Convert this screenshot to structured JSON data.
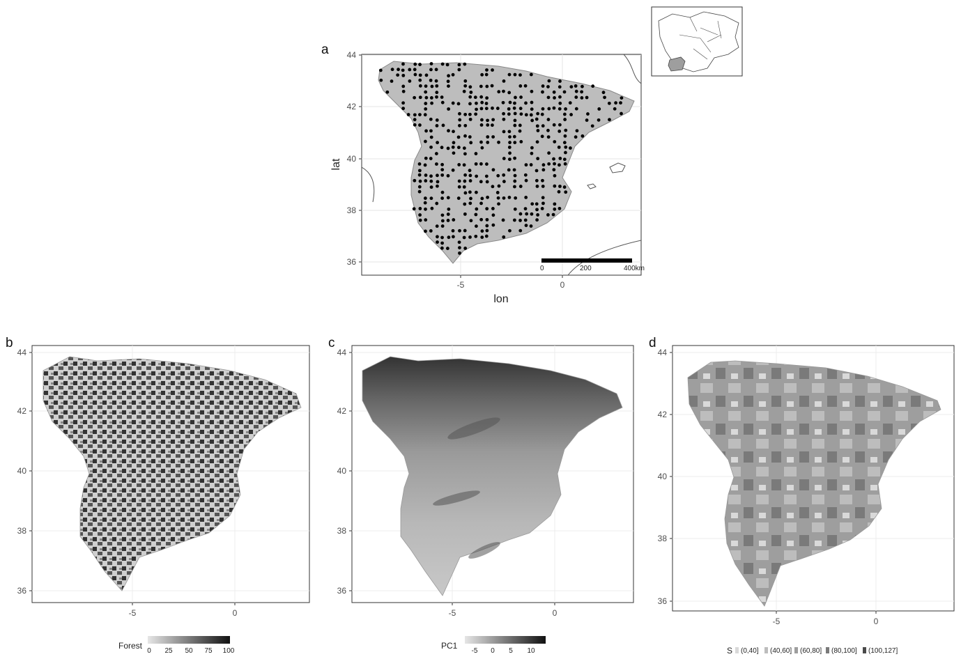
{
  "panel_a": {
    "label": "a",
    "x_label": "lon",
    "y_label": "lat",
    "x_ticks": [
      "-5",
      "0"
    ],
    "y_ticks": [
      "36",
      "38",
      "40",
      "42",
      "44"
    ],
    "scalebar": [
      "0",
      "200",
      "400km"
    ]
  },
  "panel_b": {
    "label": "b",
    "x_ticks": [
      "-5",
      "0"
    ],
    "y_ticks": [
      "36",
      "38",
      "40",
      "42",
      "44"
    ],
    "legend_title": "Forest",
    "legend_ticks": [
      "0",
      "25",
      "50",
      "75",
      "100"
    ]
  },
  "panel_c": {
    "label": "c",
    "x_ticks": [
      "-5",
      "0"
    ],
    "y_ticks": [
      "36",
      "38",
      "40",
      "42",
      "44"
    ],
    "legend_title": "PC1",
    "legend_ticks": [
      "-5",
      "0",
      "5",
      "10"
    ]
  },
  "panel_d": {
    "label": "d",
    "x_ticks": [
      "-5",
      "0"
    ],
    "y_ticks": [
      "36",
      "38",
      "40",
      "42",
      "44"
    ],
    "legend_title": "S",
    "legend_items": [
      "(0,40]",
      "(40,60]",
      "(60,80]",
      "(80,100]",
      "(100,127]"
    ]
  },
  "colors": {
    "land_fill": "#ffffff",
    "grid_sample": "#bdbdbd",
    "point": "#000000",
    "gradient_light": "#e6e6e6",
    "gradient_dark": "#111111",
    "d_classes": [
      "#d9d9d9",
      "#bdbdbd",
      "#9e9e9e",
      "#7a7a7a",
      "#4a4a4a"
    ]
  }
}
